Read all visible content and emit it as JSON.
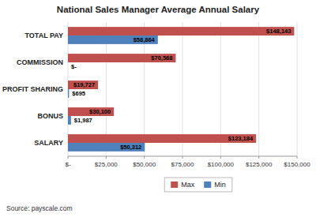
{
  "chart_data": {
    "type": "bar",
    "orientation": "horizontal",
    "title": "National Sales Manager  Average Annual Salary",
    "categories": [
      "SALARY",
      "BONUS",
      "PROFIT SHARING",
      "COMMISSION",
      "TOTAL PAY"
    ],
    "series": [
      {
        "name": "Max",
        "color": "#c0504d",
        "values": [
          123184,
          30100,
          19727,
          70568,
          148143
        ],
        "value_labels": [
          "$123,184",
          "$30,100",
          "$19,727",
          "$70,568",
          "$148,143"
        ]
      },
      {
        "name": "Min",
        "color": "#4f81bd",
        "values": [
          50312,
          1987,
          695,
          0,
          58864
        ],
        "value_labels": [
          "$50,312",
          "$1,987",
          "$695",
          "$-",
          "$58,864"
        ]
      }
    ],
    "xlim": [
      0,
      150000
    ],
    "xticks": [
      {
        "value": 0,
        "label": "$-"
      },
      {
        "value": 25000,
        "label": "$25,000"
      },
      {
        "value": 50000,
        "label": "$50,000"
      },
      {
        "value": 75000,
        "label": "$75,000"
      },
      {
        "value": 100000,
        "label": "$100,000"
      },
      {
        "value": 125000,
        "label": "$125,000"
      },
      {
        "value": 150000,
        "label": "$150,000"
      }
    ],
    "grid": true,
    "legend": "bottom",
    "data_labels": true,
    "annotations": [
      "Source: payscale.com"
    ]
  }
}
